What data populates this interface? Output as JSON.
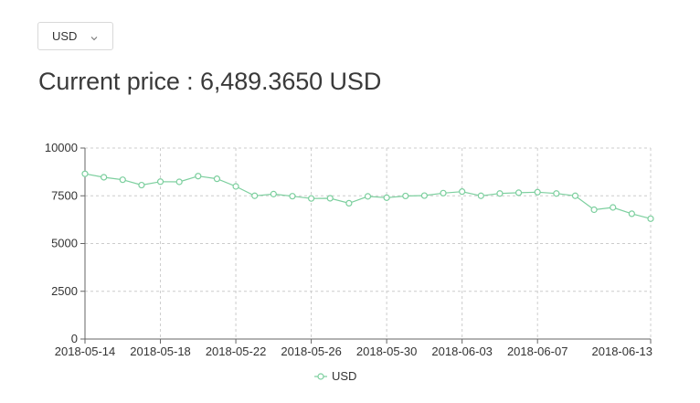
{
  "currency_select": {
    "value": "USD",
    "icon": "chevron-down-icon"
  },
  "price": {
    "label": "Current price : ",
    "value": "6,489.3650",
    "currency": "USD"
  },
  "chart_data": {
    "type": "line",
    "title": "",
    "xlabel": "",
    "ylabel": "",
    "grid": true,
    "legend": "bottom-center",
    "ylim": [
      0,
      10000
    ],
    "yticks": [
      "0",
      "2500",
      "5000",
      "7500",
      "10000"
    ],
    "xticks": [
      "2018-05-14",
      "2018-05-18",
      "2018-05-22",
      "2018-05-26",
      "2018-05-30",
      "2018-06-03",
      "2018-06-07",
      "2018-06-13"
    ],
    "x": [
      "2018-05-14",
      "2018-05-15",
      "2018-05-16",
      "2018-05-17",
      "2018-05-18",
      "2018-05-19",
      "2018-05-20",
      "2018-05-21",
      "2018-05-22",
      "2018-05-23",
      "2018-05-24",
      "2018-05-25",
      "2018-05-26",
      "2018-05-27",
      "2018-05-28",
      "2018-05-29",
      "2018-05-30",
      "2018-05-31",
      "2018-06-01",
      "2018-06-02",
      "2018-06-03",
      "2018-06-04",
      "2018-06-05",
      "2018-06-06",
      "2018-06-07",
      "2018-06-08",
      "2018-06-09",
      "2018-06-10",
      "2018-06-11",
      "2018-06-12",
      "2018-06-13"
    ],
    "series": [
      {
        "name": "USD",
        "color": "#7ccf9e",
        "values": [
          8650,
          8470,
          8340,
          8060,
          8240,
          8230,
          8530,
          8390,
          7990,
          7500,
          7590,
          7480,
          7360,
          7370,
          7110,
          7470,
          7400,
          7490,
          7510,
          7640,
          7720,
          7500,
          7620,
          7660,
          7690,
          7620,
          7500,
          6770,
          6890,
          6560,
          6300
        ]
      }
    ]
  }
}
